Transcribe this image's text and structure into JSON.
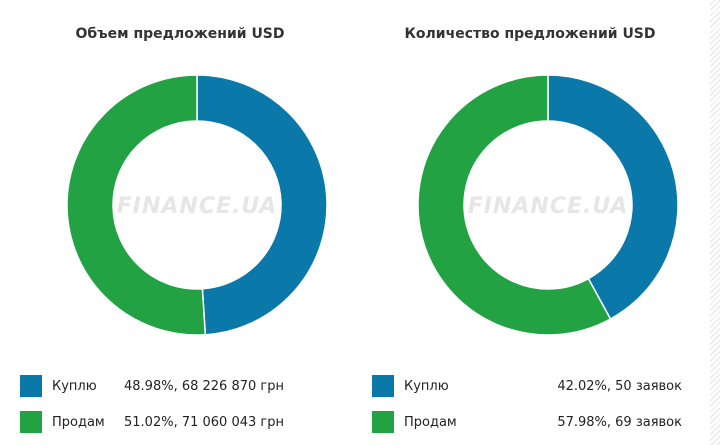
{
  "colors": {
    "buy": "#0a78a8",
    "sell": "#22a243",
    "watermark": "#e6e6e6"
  },
  "watermark": "FINANCE.UA",
  "chart_data": [
    {
      "type": "pie",
      "donut": true,
      "title": "Объем предложений USD",
      "categories": [
        "Куплю",
        "Продам"
      ],
      "values": [
        48.98,
        51.02
      ],
      "legend": "bottom",
      "legend_values": [
        "48.98%, 68 226 870 грн",
        "51.02%, 71 060 043 грн"
      ]
    },
    {
      "type": "pie",
      "donut": true,
      "title": "Количество предложений USD",
      "categories": [
        "Куплю",
        "Продам"
      ],
      "values": [
        42.02,
        57.98
      ],
      "legend": "bottom",
      "legend_values": [
        "42.02%, 50 заявок",
        "57.98%, 69 заявок"
      ]
    }
  ]
}
